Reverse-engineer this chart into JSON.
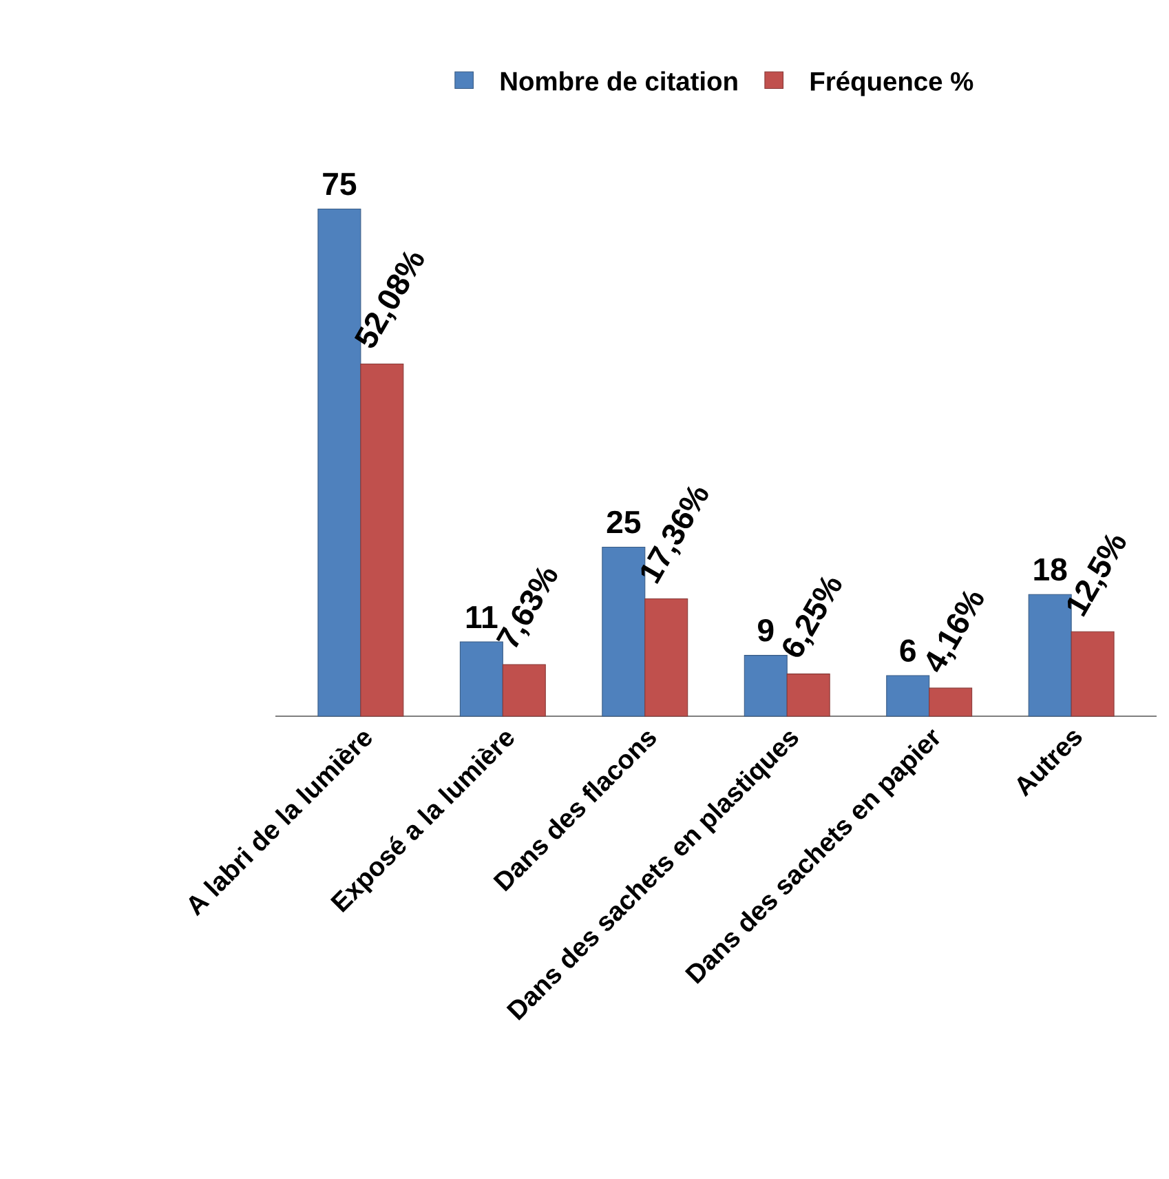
{
  "chart_data": {
    "type": "bar",
    "categories": [
      "A labri de la lumière",
      "Exposé a la lumière",
      "Dans des flacons",
      "Dans des sachets en plastiques",
      "Dans des sachets en papier",
      "Autres"
    ],
    "series": [
      {
        "name": "Nombre de citation",
        "color": "#4f81bd",
        "values": [
          75,
          11,
          25,
          9,
          6,
          18
        ],
        "value_labels": [
          "75",
          "11",
          "25",
          "9",
          "6",
          "18"
        ]
      },
      {
        "name": "Fréquence %",
        "color": "#c0504d",
        "values": [
          52.08,
          7.63,
          17.36,
          6.25,
          4.16,
          12.5
        ],
        "value_labels": [
          "52,08%",
          "7,63%",
          "17,36%",
          "6,25%",
          "4,16%",
          "12,5%"
        ]
      }
    ],
    "legend": "top"
  }
}
